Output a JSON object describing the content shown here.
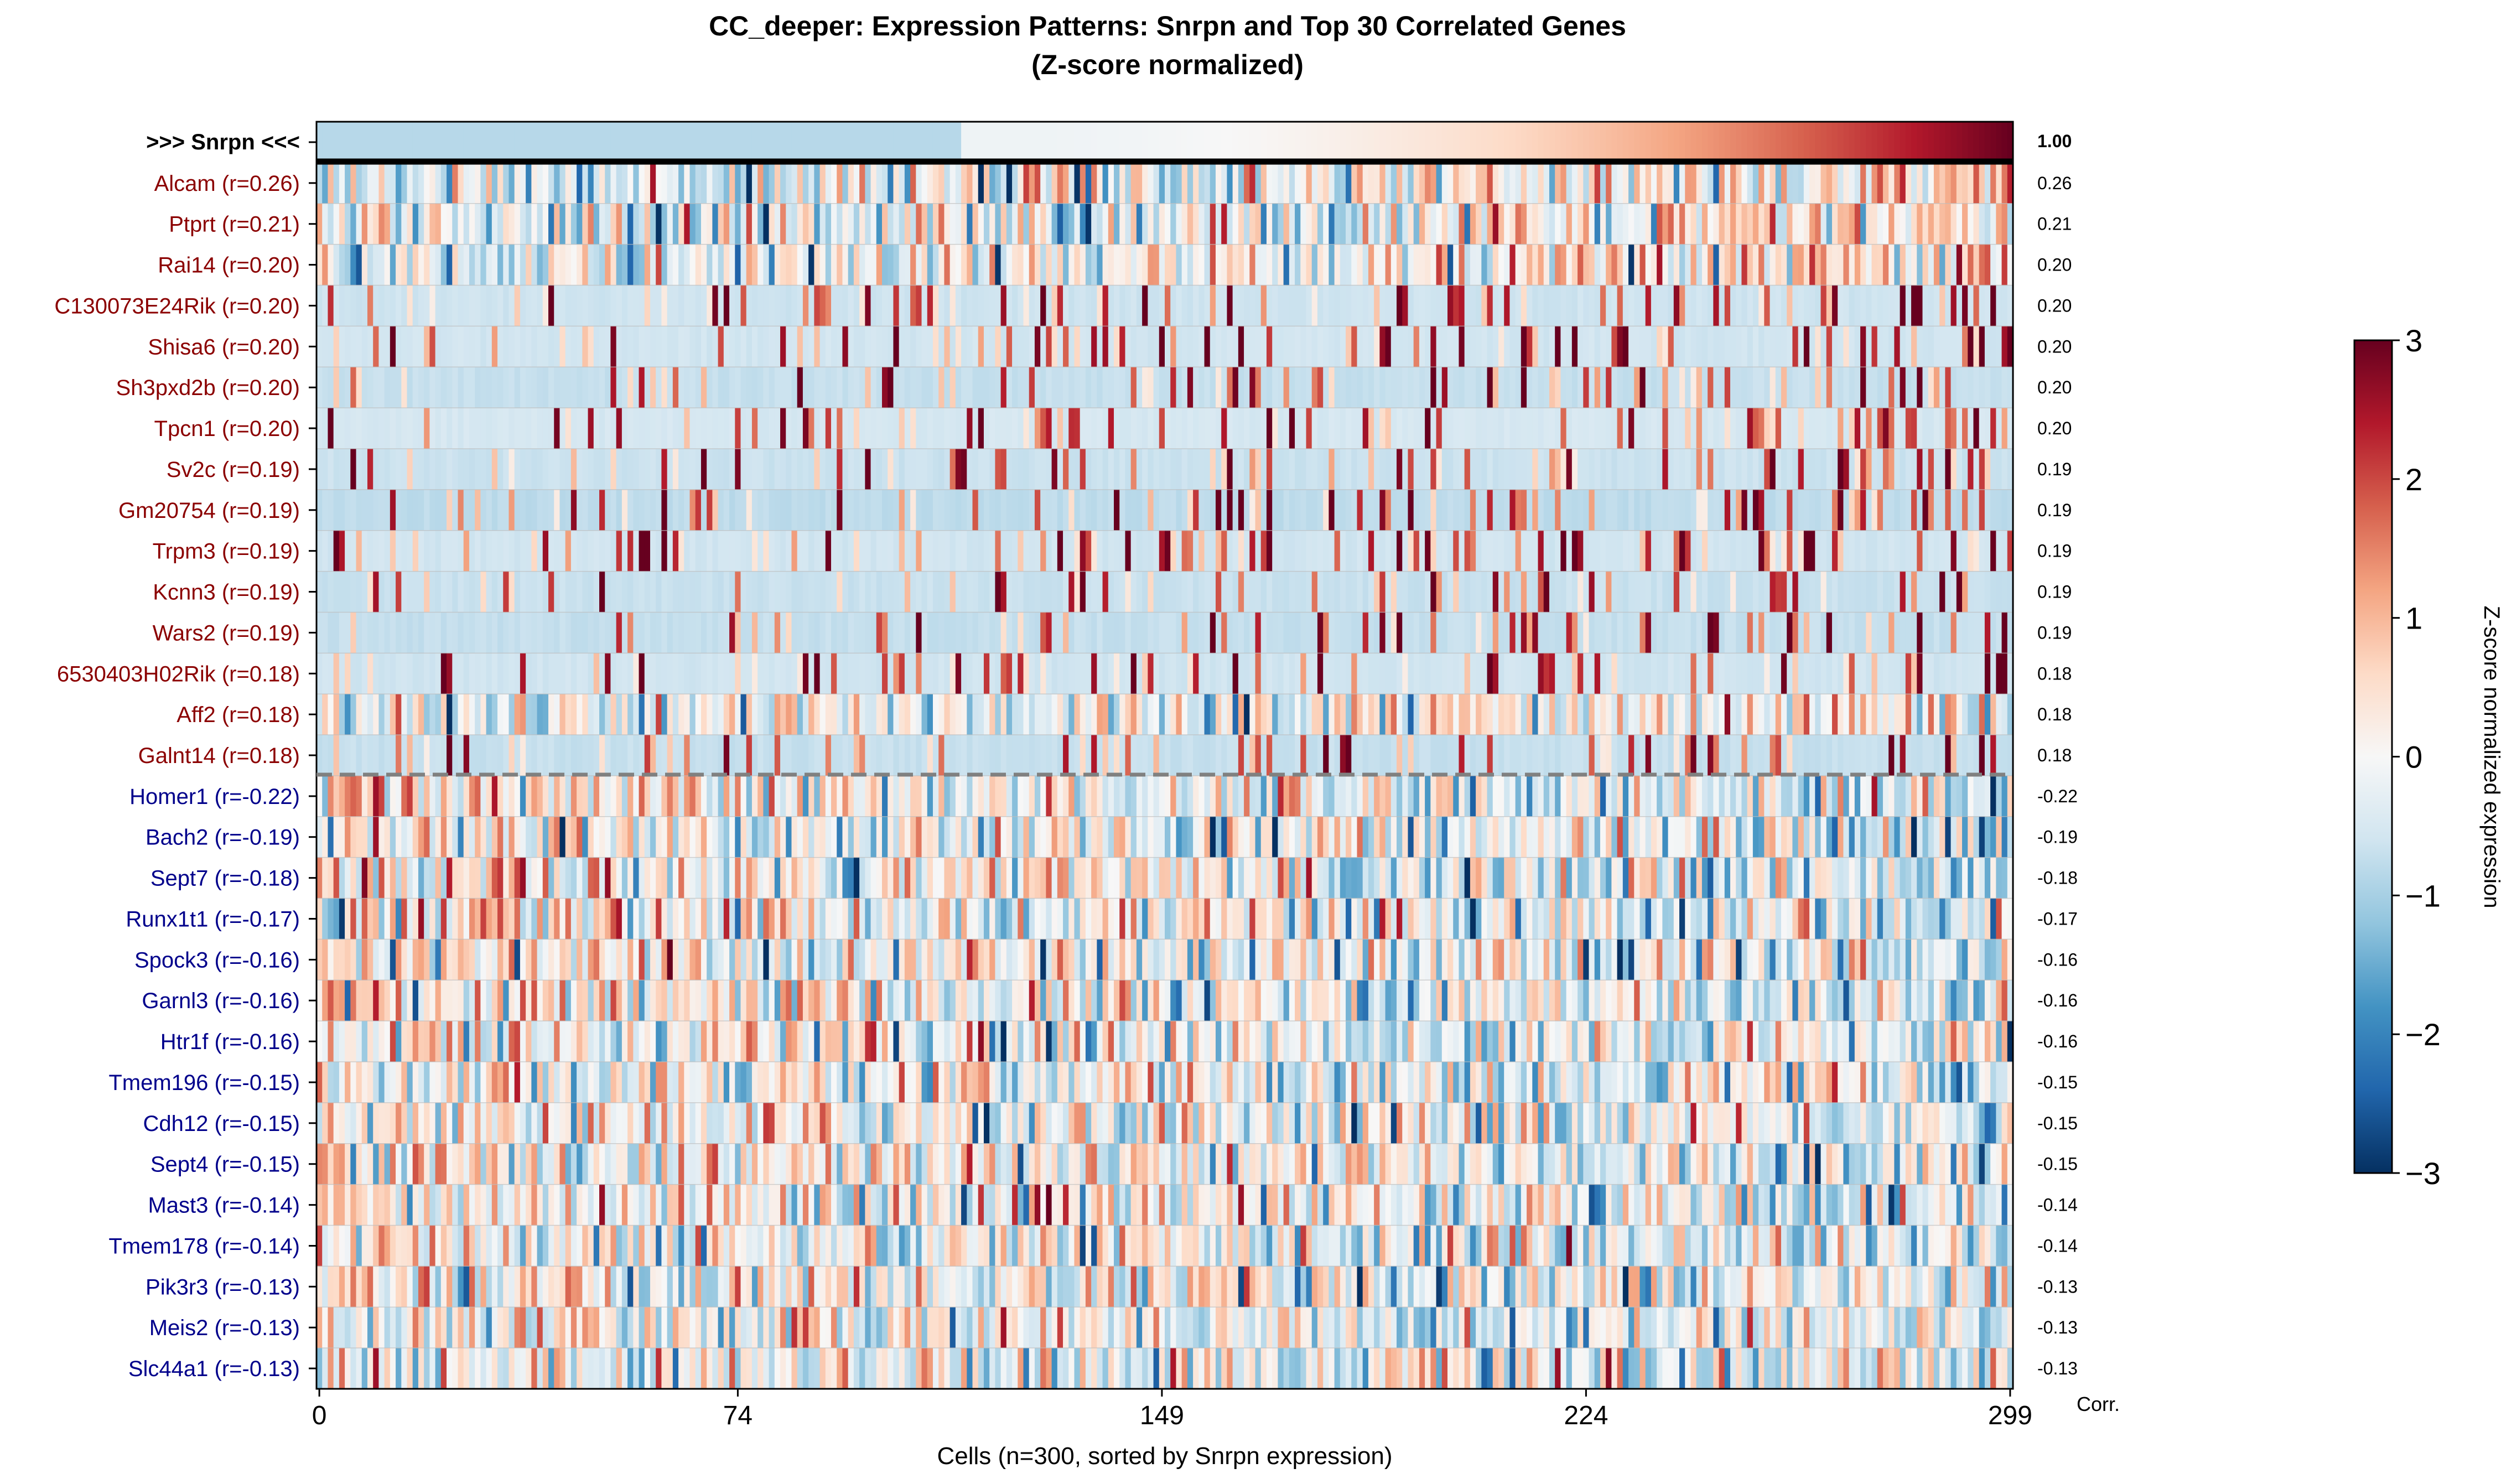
{
  "chart_data": {
    "type": "heatmap",
    "title": "CC_deeper: Expression Patterns: Snrpn and Top 30 Correlated Genes",
    "subtitle": "(Z-score normalized)",
    "xlabel": "Cells (n=300, sorted by Snrpn expression)",
    "x_ticks": [
      "0",
      "74",
      "149",
      "224",
      "299"
    ],
    "corr_header": "Corr.",
    "n_cells": 300,
    "target": {
      "label": ">>> Snrpn <<<",
      "corr": "1.00"
    },
    "positive": [
      {
        "label": "Alcam (r=0.26)",
        "corr": "0.26",
        "r": 0.26
      },
      {
        "label": "Ptprt (r=0.21)",
        "corr": "0.21",
        "r": 0.21
      },
      {
        "label": "Rai14 (r=0.20)",
        "corr": "0.20",
        "r": 0.2
      },
      {
        "label": "C130073E24Rik (r=0.20)",
        "corr": "0.20",
        "r": 0.2
      },
      {
        "label": "Shisa6 (r=0.20)",
        "corr": "0.20",
        "r": 0.2
      },
      {
        "label": "Sh3pxd2b (r=0.20)",
        "corr": "0.20",
        "r": 0.2
      },
      {
        "label": "Tpcn1 (r=0.20)",
        "corr": "0.20",
        "r": 0.2
      },
      {
        "label": "Sv2c (r=0.19)",
        "corr": "0.19",
        "r": 0.19
      },
      {
        "label": "Gm20754 (r=0.19)",
        "corr": "0.19",
        "r": 0.19
      },
      {
        "label": "Trpm3 (r=0.19)",
        "corr": "0.19",
        "r": 0.19
      },
      {
        "label": "Kcnn3 (r=0.19)",
        "corr": "0.19",
        "r": 0.19
      },
      {
        "label": "Wars2 (r=0.19)",
        "corr": "0.19",
        "r": 0.19
      },
      {
        "label": "6530403H02Rik (r=0.18)",
        "corr": "0.18",
        "r": 0.18
      },
      {
        "label": "Aff2 (r=0.18)",
        "corr": "0.18",
        "r": 0.18
      },
      {
        "label": "Galnt14 (r=0.18)",
        "corr": "0.18",
        "r": 0.18
      }
    ],
    "negative": [
      {
        "label": "Homer1 (r=-0.22)",
        "corr": "-0.22",
        "r": -0.22
      },
      {
        "label": "Bach2 (r=-0.19)",
        "corr": "-0.19",
        "r": -0.19
      },
      {
        "label": "Sept7 (r=-0.18)",
        "corr": "-0.18",
        "r": -0.18
      },
      {
        "label": "Runx1t1 (r=-0.17)",
        "corr": "-0.17",
        "r": -0.17
      },
      {
        "label": "Spock3 (r=-0.16)",
        "corr": "-0.16",
        "r": -0.16
      },
      {
        "label": "Garnl3 (r=-0.16)",
        "corr": "-0.16",
        "r": -0.16
      },
      {
        "label": "Htr1f (r=-0.16)",
        "corr": "-0.16",
        "r": -0.16
      },
      {
        "label": "Tmem196 (r=-0.15)",
        "corr": "-0.15",
        "r": -0.15
      },
      {
        "label": "Cdh12 (r=-0.15)",
        "corr": "-0.15",
        "r": -0.15
      },
      {
        "label": "Sept4 (r=-0.15)",
        "corr": "-0.15",
        "r": -0.15
      },
      {
        "label": "Mast3 (r=-0.14)",
        "corr": "-0.14",
        "r": -0.14
      },
      {
        "label": "Tmem178 (r=-0.14)",
        "corr": "-0.14",
        "r": -0.14
      },
      {
        "label": "Pik3r3 (r=-0.13)",
        "corr": "-0.13",
        "r": -0.13
      },
      {
        "label": "Meis2 (r=-0.13)",
        "corr": "-0.13",
        "r": -0.13
      },
      {
        "label": "Slc44a1 (r=-0.13)",
        "corr": "-0.13",
        "r": -0.13
      }
    ],
    "colorbar": {
      "label": "Z-score normalized expression",
      "range": [
        -3,
        3
      ],
      "ticks": [
        "3",
        "2",
        "1",
        "0",
        "−1",
        "−2",
        "−3"
      ],
      "colormap": "RdBu_r"
    },
    "colors": {
      "positive_label": "#8b0000",
      "negative_label": "#00008b",
      "target_label": "#000000",
      "separator": "#808080",
      "low": "#053061",
      "mid": "#f7f7f7",
      "high": "#67001f"
    }
  }
}
